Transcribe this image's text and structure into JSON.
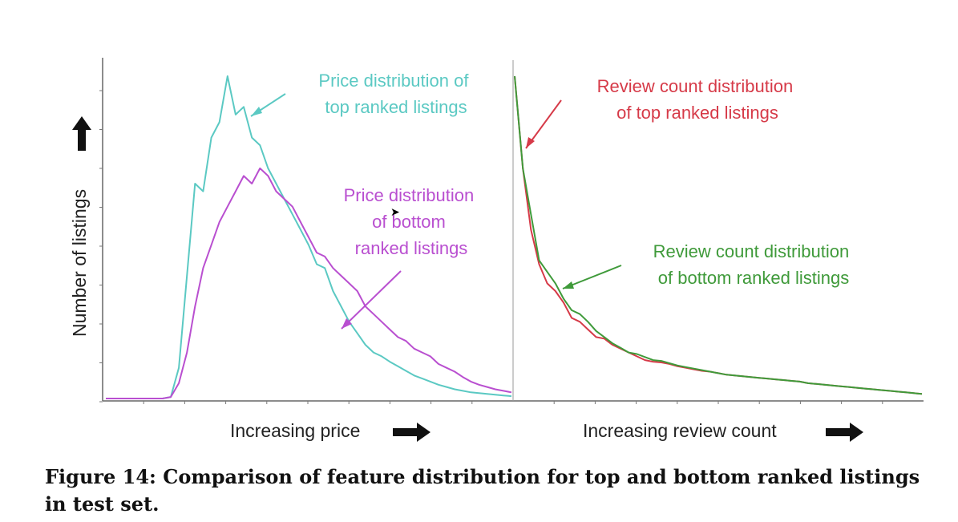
{
  "chart_data": [
    {
      "type": "line",
      "xlabel": "Increasing price",
      "ylabel": "Number of listings",
      "ylim": [
        0,
        420
      ],
      "grid": false,
      "x": [
        0,
        2,
        4,
        6,
        8,
        10,
        12,
        14,
        16,
        18,
        20,
        22,
        24,
        26,
        28,
        30,
        32,
        34,
        36,
        38,
        40,
        42,
        44,
        46,
        48,
        50,
        52,
        54,
        56,
        58,
        60,
        62,
        64,
        66,
        68,
        70,
        72,
        74,
        76,
        78,
        80,
        82,
        84,
        86,
        88,
        90,
        92,
        94,
        96,
        98,
        100
      ],
      "series": [
        {
          "name": "Price distribution of top ranked listings",
          "color": "#5bc9c3",
          "values": [
            0,
            0,
            0,
            0,
            0,
            0,
            0,
            0,
            2,
            40,
            160,
            280,
            270,
            340,
            360,
            420,
            370,
            380,
            340,
            330,
            300,
            280,
            260,
            240,
            220,
            200,
            175,
            170,
            140,
            120,
            100,
            85,
            70,
            60,
            55,
            48,
            42,
            36,
            30,
            26,
            22,
            18,
            15,
            12,
            10,
            8,
            7,
            6,
            5,
            4,
            3
          ]
        },
        {
          "name": "Price distribution of bottom ranked listings",
          "color": "#b94fd0",
          "values": [
            0,
            0,
            0,
            0,
            0,
            0,
            0,
            0,
            2,
            20,
            60,
            120,
            170,
            200,
            230,
            250,
            270,
            290,
            280,
            300,
            290,
            270,
            260,
            250,
            230,
            210,
            190,
            185,
            170,
            160,
            150,
            140,
            120,
            110,
            100,
            90,
            80,
            75,
            65,
            60,
            55,
            45,
            40,
            35,
            28,
            22,
            18,
            15,
            12,
            10,
            8
          ]
        }
      ]
    },
    {
      "type": "line",
      "xlabel": "Increasing review count",
      "ylabel": "",
      "ylim": [
        0,
        420
      ],
      "grid": false,
      "x": [
        0,
        2,
        4,
        6,
        8,
        10,
        12,
        14,
        16,
        18,
        20,
        22,
        24,
        26,
        28,
        30,
        32,
        34,
        36,
        38,
        40,
        42,
        44,
        46,
        48,
        50,
        52,
        54,
        56,
        58,
        60,
        62,
        64,
        66,
        68,
        70,
        72,
        74,
        76,
        78,
        80,
        82,
        84,
        86,
        88,
        90,
        92,
        94,
        96,
        98,
        100
      ],
      "series": [
        {
          "name": "Review count distribution of top ranked listings",
          "color": "#d63a48",
          "values": [
            420,
            300,
            220,
            175,
            150,
            140,
            125,
            105,
            100,
            90,
            80,
            78,
            70,
            65,
            60,
            55,
            50,
            48,
            47,
            45,
            42,
            40,
            38,
            36,
            35,
            33,
            31,
            30,
            29,
            28,
            27,
            26,
            25,
            24,
            23,
            22,
            20,
            19,
            18,
            17,
            16,
            15,
            14,
            13,
            12,
            11,
            10,
            9,
            8,
            7,
            6
          ]
        },
        {
          "name": "Review count distribution of bottom ranked listings",
          "color": "#3f9a3a",
          "values": [
            420,
            300,
            240,
            180,
            165,
            150,
            130,
            115,
            110,
            100,
            88,
            80,
            72,
            66,
            60,
            58,
            54,
            50,
            49,
            46,
            43,
            41,
            39,
            37,
            35,
            33,
            31,
            30,
            29,
            28,
            27,
            26,
            25,
            24,
            23,
            22,
            20,
            19,
            18,
            17,
            16,
            15,
            14,
            13,
            12,
            11,
            10,
            9,
            8,
            7,
            6
          ]
        }
      ]
    }
  ],
  "annotations": {
    "price_top": [
      "Price distribution of",
      "top ranked listings"
    ],
    "price_bottom": [
      "Price distribution",
      "of bottom",
      "ranked listings"
    ],
    "review_top": [
      "Review count distribution",
      "of top ranked listings"
    ],
    "review_bottom": [
      "Review count distribution",
      "of bottom ranked listings"
    ]
  },
  "colors": {
    "teal": "#5bc9c3",
    "magenta": "#b94fd0",
    "red": "#d63a48",
    "green": "#3f9a3a"
  },
  "caption": "Figure 14: Comparison of feature distribution for top and bottom ranked listings in test set."
}
